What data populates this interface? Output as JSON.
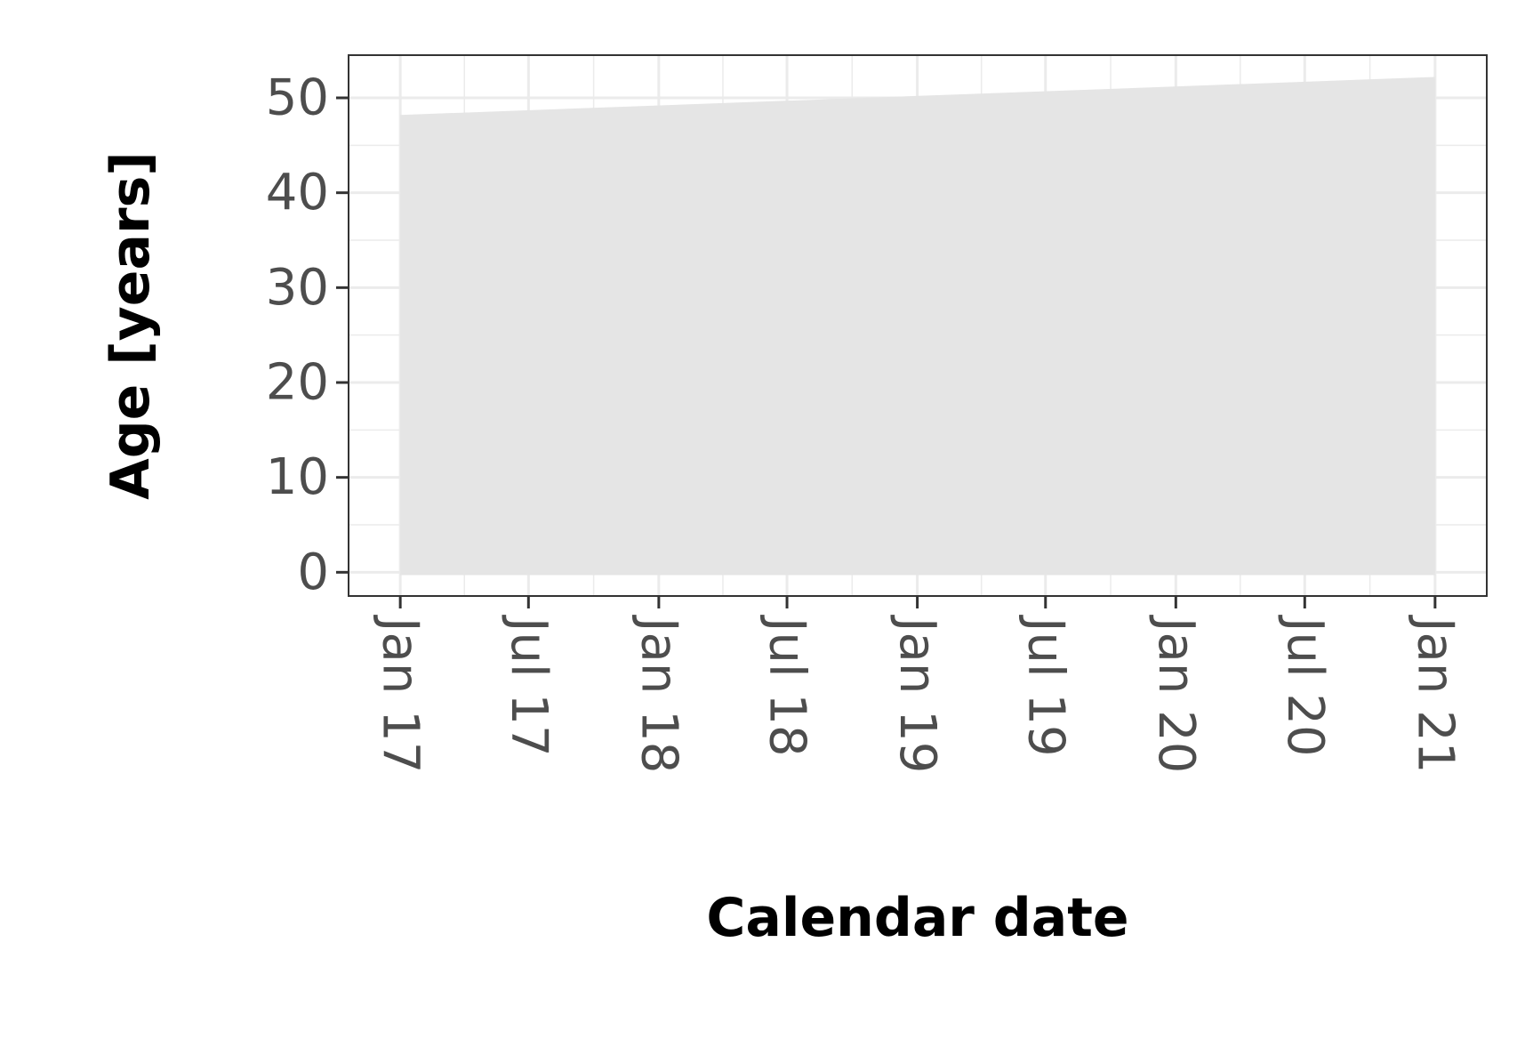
{
  "chart_data": {
    "type": "area",
    "xlabel": "Calendar date",
    "ylabel": "Age [years]",
    "x_tick_labels": [
      "Jan 17",
      "Jul 17",
      "Jan 18",
      "Jul 18",
      "Jan 19",
      "Jul 19",
      "Jan 20",
      "Jul 20",
      "Jan 21"
    ],
    "x_tick_dates": [
      "2017-01-01",
      "2017-07-01",
      "2018-01-01",
      "2018-07-01",
      "2019-01-01",
      "2019-07-01",
      "2020-01-01",
      "2020-07-01",
      "2021-01-01"
    ],
    "y_tick_labels": [
      "0",
      "10",
      "20",
      "30",
      "40",
      "50"
    ],
    "y_ticks": [
      0,
      10,
      20,
      30,
      40,
      50
    ],
    "xlim": [
      "2016-10-20",
      "2021-03-15"
    ],
    "ylim": [
      -2.5,
      54.5
    ],
    "grid": true,
    "series": [
      {
        "x": [
          "2017-01-01",
          "2021-01-01"
        ],
        "lower": [
          -0.3,
          -0.3
        ],
        "upper": [
          48.2,
          52.2
        ]
      }
    ],
    "colors": {
      "area": "#e5e5e5",
      "grid": "#ebebeb",
      "panel_border": "#333333",
      "tick_text": "#4d4d4d",
      "axis_title": "#000000"
    }
  }
}
